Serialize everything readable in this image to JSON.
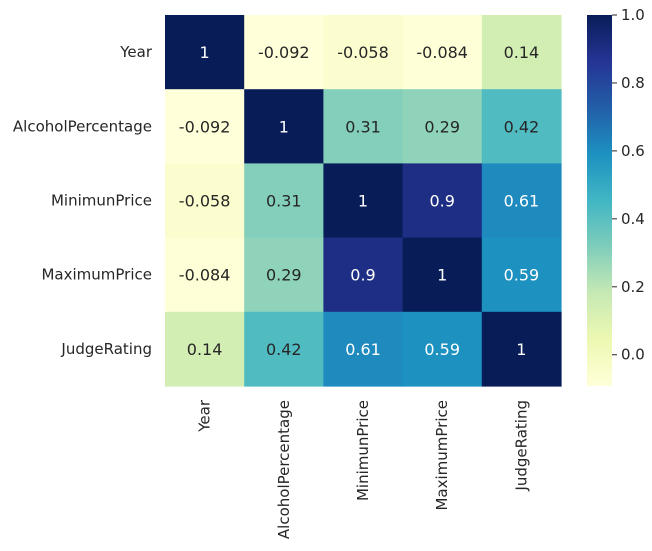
{
  "chart_data": {
    "type": "heatmap",
    "variables": [
      "Year",
      "AlcoholPercentage",
      "MinimunPrice",
      "MaximumPrice",
      "JudgeRating"
    ],
    "matrix": [
      [
        1,
        -0.092,
        -0.058,
        -0.084,
        0.14
      ],
      [
        -0.092,
        1,
        0.31,
        0.29,
        0.42
      ],
      [
        -0.058,
        0.31,
        1,
        0.9,
        0.61
      ],
      [
        -0.084,
        0.29,
        0.9,
        1,
        0.59
      ],
      [
        0.14,
        0.42,
        0.61,
        0.59,
        1
      ]
    ],
    "annotations": [
      [
        "1",
        "-0.092",
        "-0.058",
        "-0.084",
        "0.14"
      ],
      [
        "-0.092",
        "1",
        "0.31",
        "0.29",
        "0.42"
      ],
      [
        "-0.058",
        "0.31",
        "1",
        "0.9",
        "0.61"
      ],
      [
        "-0.084",
        "0.29",
        "0.9",
        "1",
        "0.59"
      ],
      [
        "0.14",
        "0.42",
        "0.61",
        "0.59",
        "1"
      ]
    ],
    "colormap": "YlGnBu",
    "vmin": -0.092,
    "vmax": 1.0,
    "colorbar": {
      "ticks": [
        0.0,
        0.2,
        0.4,
        0.6,
        0.8,
        1.0
      ],
      "tick_labels": [
        "0.0",
        "0.2",
        "0.4",
        "0.6",
        "0.8",
        "1.0"
      ]
    },
    "title": "",
    "xlabel": "",
    "ylabel": ""
  }
}
